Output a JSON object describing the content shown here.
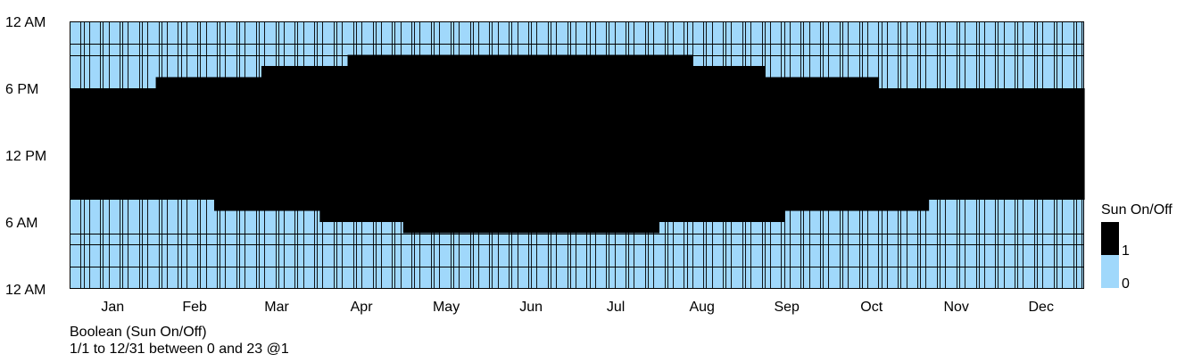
{
  "chart_data": {
    "type": "heatmap",
    "title": "",
    "x_range": [
      "1/1",
      "12/31"
    ],
    "y_range": [
      0,
      23
    ],
    "y_step": 1,
    "y_tick_labels": [
      "12 AM",
      "6 AM",
      "12 PM",
      "6 PM",
      "12 AM"
    ],
    "x_tick_labels": [
      "Jan",
      "Feb",
      "Mar",
      "Apr",
      "May",
      "Jun",
      "Jul",
      "Aug",
      "Sep",
      "Oct",
      "Nov",
      "Dec"
    ],
    "value_colors": {
      "0": "#a0d8fb",
      "1": "#000000"
    },
    "gridlines": "on",
    "legend": {
      "title": "Sun On/Off",
      "placement": "right",
      "entries": [
        {
          "value": "1",
          "label": "1",
          "color": "#000000"
        },
        {
          "value": "0",
          "label": "0",
          "color": "#a0d8fb"
        }
      ]
    },
    "sun_periods": [
      {
        "from": "1/1",
        "to": "1/31",
        "on_hour": 8,
        "off_hour": 17
      },
      {
        "from": "2/1",
        "to": "2/21",
        "on_hour": 8,
        "off_hour": 18
      },
      {
        "from": "2/22",
        "to": "3/10",
        "on_hour": 7,
        "off_hour": 18
      },
      {
        "from": "3/11",
        "to": "3/31",
        "on_hour": 7,
        "off_hour": 19
      },
      {
        "from": "4/1",
        "to": "4/10",
        "on_hour": 6,
        "off_hour": 19
      },
      {
        "from": "4/11",
        "to": "4/30",
        "on_hour": 6,
        "off_hour": 20
      },
      {
        "from": "5/1",
        "to": "7/31",
        "on_hour": 5,
        "off_hour": 20
      },
      {
        "from": "8/1",
        "to": "8/12",
        "on_hour": 6,
        "off_hour": 20
      },
      {
        "from": "8/13",
        "to": "9/7",
        "on_hour": 6,
        "off_hour": 19
      },
      {
        "from": "9/8",
        "to": "9/14",
        "on_hour": 6,
        "off_hour": 18
      },
      {
        "from": "9/15",
        "to": "10/18",
        "on_hour": 7,
        "off_hour": 18
      },
      {
        "from": "10/19",
        "to": "11/5",
        "on_hour": 7,
        "off_hour": 17
      },
      {
        "from": "11/6",
        "to": "12/31",
        "on_hour": 8,
        "off_hour": 17
      }
    ]
  },
  "footer": {
    "line1": "Boolean (Sun On/Off)",
    "line2": "1/1 to 12/31 between 0 and 23 @1"
  }
}
